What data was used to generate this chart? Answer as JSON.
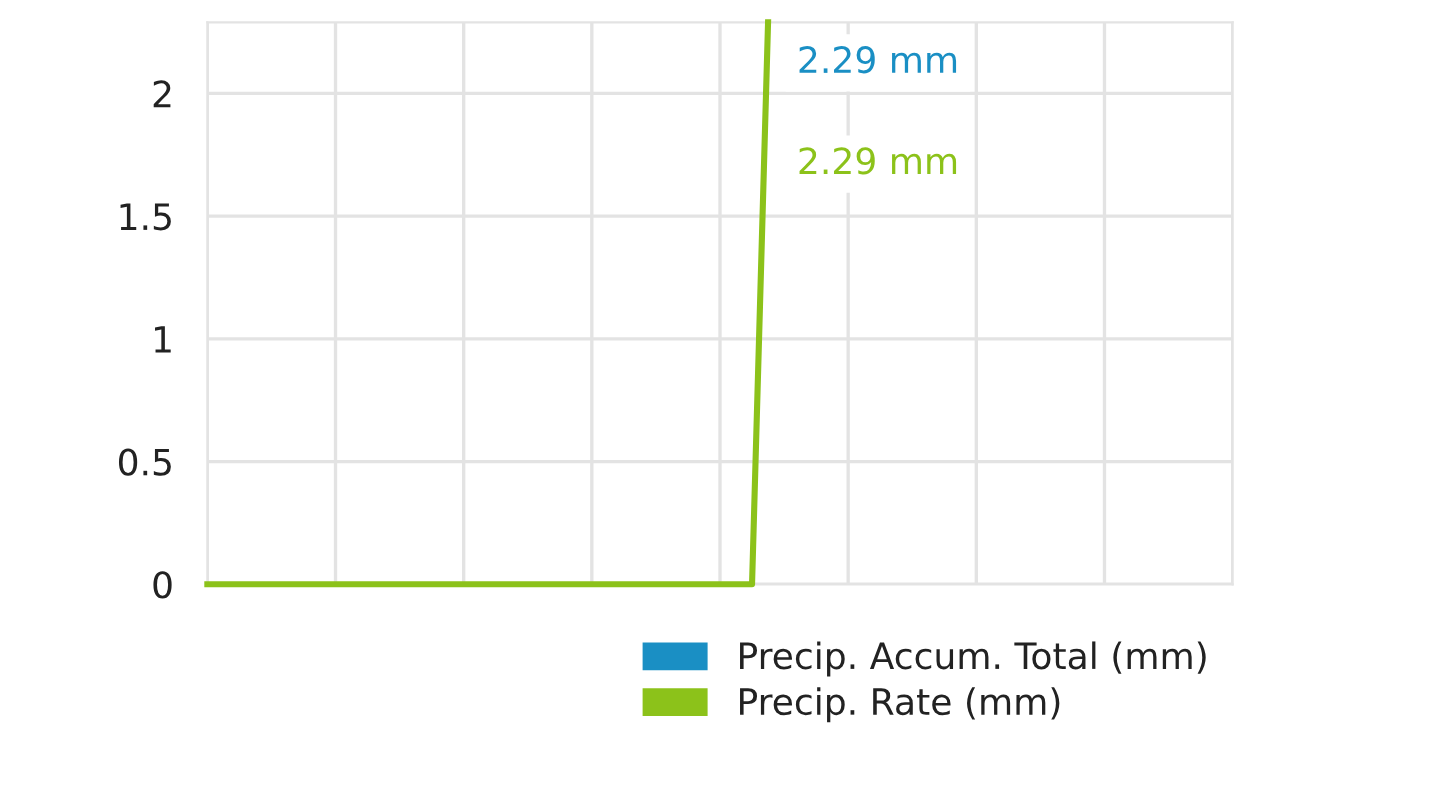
{
  "chart_data": {
    "type": "line",
    "categories": [
      null,
      null,
      null,
      null,
      null,
      null,
      null,
      null,
      null,
      null,
      null,
      null,
      null,
      null,
      null,
      null,
      null,
      null,
      null,
      null,
      null,
      null,
      null,
      null,
      null,
      null,
      null,
      null,
      null,
      null,
      null,
      null,
      null,
      null,
      null,
      null,
      null,
      null,
      null,
      null,
      null,
      null,
      null,
      null,
      null,
      null,
      null,
      null,
      null,
      null,
      null,
      null,
      null,
      null,
      null,
      null,
      null,
      null,
      null,
      null,
      null,
      null,
      null,
      null,
      null
    ],
    "series": [
      {
        "name": "Precip. Accum. Total (mm)",
        "color": "#1a8fc4",
        "values": [
          null,
          null,
          null,
          null,
          null,
          null,
          null,
          null,
          null,
          null,
          null,
          null,
          null,
          null,
          null,
          null,
          null,
          null,
          null,
          null,
          null,
          null,
          null,
          null,
          null,
          null,
          null,
          null,
          null,
          null,
          null,
          null,
          null,
          null,
          null,
          null,
          null,
          null,
          null,
          null,
          null,
          null,
          null,
          null,
          null,
          null,
          null,
          null,
          null,
          null,
          null,
          null,
          null,
          null,
          null,
          null,
          null,
          null,
          null,
          null,
          null,
          null,
          null,
          null,
          null
        ]
      },
      {
        "name": "Precip. Rate (mm)",
        "color": "#8cc21a",
        "values": [
          0,
          0,
          0,
          0,
          0,
          0,
          0,
          0,
          0,
          0,
          0,
          0,
          0,
          0,
          0,
          0,
          0,
          0,
          0,
          0,
          0,
          0,
          0,
          0,
          0,
          0,
          0,
          0,
          0,
          0,
          0,
          0,
          0,
          0,
          0,
          2.29,
          null,
          null,
          null,
          null,
          null,
          null,
          null,
          null,
          null,
          null,
          null,
          null,
          null,
          null,
          null,
          null,
          null,
          null,
          null,
          null,
          null,
          null,
          null,
          null,
          null,
          null,
          null,
          null,
          null
        ]
      }
    ],
    "annotations": [
      "2.29 mm",
      "2.29 mm"
    ],
    "ylim": [
      0,
      2.29
    ],
    "yticks": [
      0,
      0.5,
      1,
      1.5,
      2
    ],
    "grid": true,
    "legend": "bottom right",
    "tick_labels": "y",
    "marker": "none",
    "line_style": "solid"
  }
}
